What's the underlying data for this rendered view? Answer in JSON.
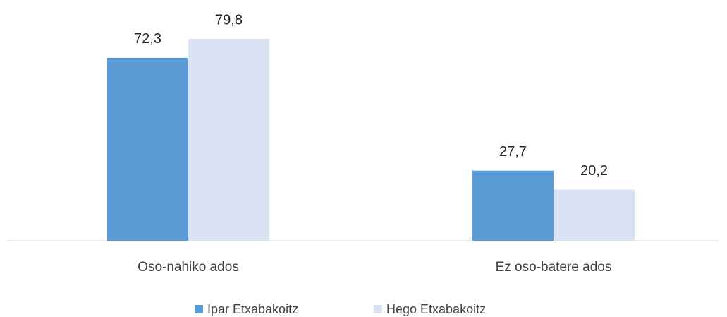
{
  "chart_data": {
    "type": "bar",
    "categories": [
      "Oso-nahiko ados",
      "Ez oso-batere ados"
    ],
    "series": [
      {
        "name": "Ipar Etxabakoitz",
        "color": "#5b9bd5",
        "values": [
          72.3,
          27.7
        ],
        "value_labels": [
          "72,3",
          "27,7"
        ]
      },
      {
        "name": "Hego Etxabakoitz",
        "color": "#dae3f3",
        "values": [
          79.8,
          20.2
        ],
        "value_labels": [
          "79,8",
          "20,2"
        ]
      }
    ]
  }
}
